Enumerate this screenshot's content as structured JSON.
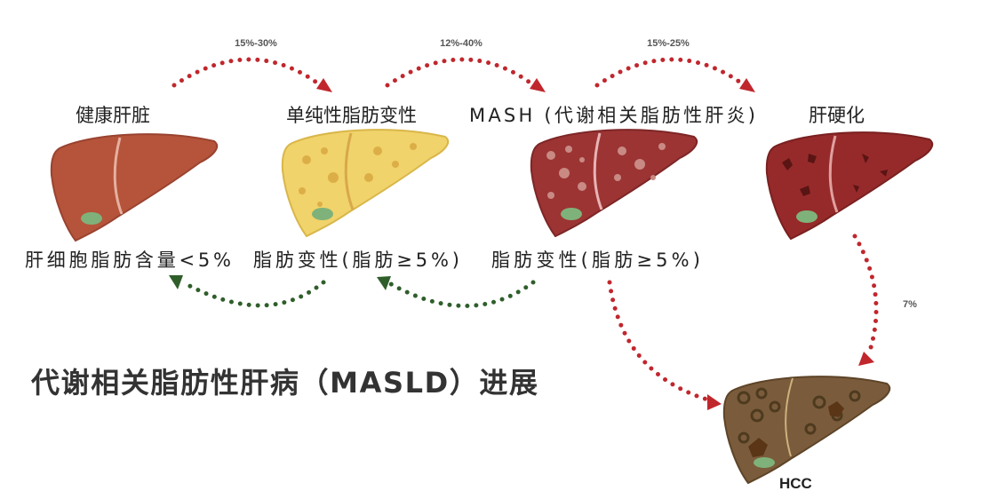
{
  "stages": [
    {
      "label": "健康肝脏",
      "fat_label": "肝细胞脂肪含量<5%",
      "color": "#b5543a"
    },
    {
      "label": "单纯性脂肪变性",
      "fat_label": "脂肪变性(脂肪≥5%)",
      "color": "#f0d36a"
    },
    {
      "label": "MASH (代谢相关脂肪性肝炎)",
      "fat_label": "脂肪变性(脂肪≥5%)",
      "color": "#9c3434"
    },
    {
      "label": "肝硬化",
      "color": "#962a2a"
    },
    {
      "label": "HCC",
      "color": "#7a5c3c"
    }
  ],
  "transitions": [
    {
      "from": "健康肝脏",
      "to": "单纯性脂肪变性",
      "rate": "15%-30%",
      "color": "#c0272d"
    },
    {
      "from": "单纯性脂肪变性",
      "to": "MASH",
      "rate": "12%-40%",
      "color": "#c0272d"
    },
    {
      "from": "MASH",
      "to": "肝硬化",
      "rate": "15%-25%",
      "color": "#c0272d"
    },
    {
      "from": "肝硬化",
      "to": "HCC",
      "rate": "7%",
      "color": "#c0272d"
    },
    {
      "from": "MASH",
      "to": "HCC",
      "rate": "",
      "color": "#c0272d"
    },
    {
      "from": "单纯性脂肪变性",
      "to": "健康肝脏",
      "rate": "",
      "color": "#2f5e2a"
    },
    {
      "from": "MASH",
      "to": "单纯性脂肪变性",
      "rate": "",
      "color": "#2f5e2a"
    }
  ],
  "title": "代谢相关脂肪性肝病（MASLD）进展"
}
